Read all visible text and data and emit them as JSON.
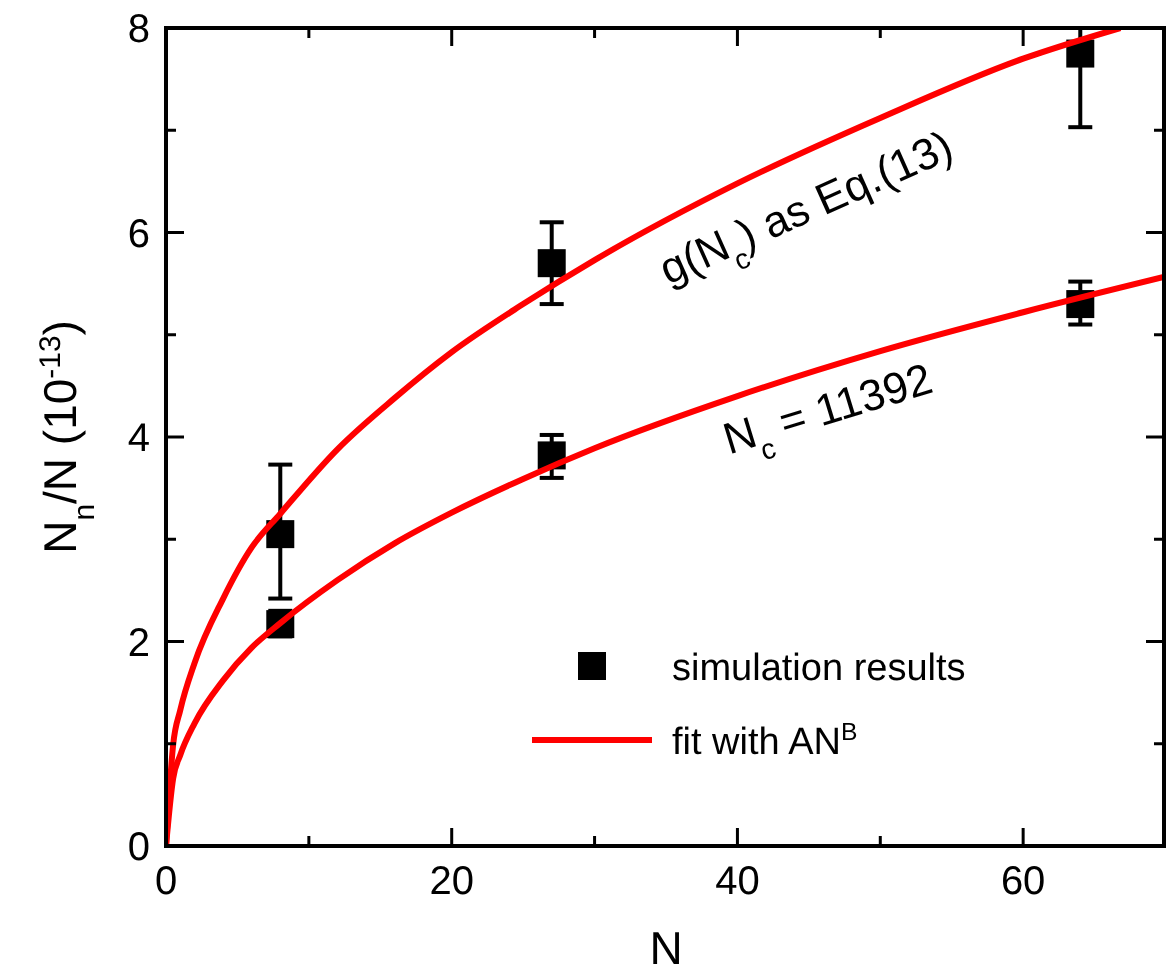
{
  "chart_data": {
    "type": "scatter",
    "xlabel": "N",
    "ylabel": "N$_{n}$/N (10$^{-13}$)",
    "xlim": [
      0,
      70
    ],
    "ylim": [
      0,
      8
    ],
    "xticks": [
      0,
      {
        "value": 10,
        "label": null
      },
      20,
      {
        "value": 30,
        "label": null
      },
      40,
      {
        "value": 50,
        "label": null
      },
      60
    ],
    "yticks": [
      0,
      {
        "value": 1,
        "label": null
      },
      2,
      {
        "value": 3,
        "label": null
      },
      4,
      {
        "value": 5,
        "label": null
      },
      6,
      {
        "value": 7,
        "label": null
      },
      8
    ],
    "grid": false,
    "legend": "bottom right",
    "series": [
      {
        "name": "simulation results",
        "marker": "square",
        "color": "#000000",
        "x": [
          8,
          8,
          27,
          27,
          64,
          64
        ],
        "values": [
          3.05,
          2.17,
          5.7,
          3.82,
          7.75,
          5.3
        ],
        "errors": [
          [
            2.42,
            3.73
          ],
          [
            2.05,
            2.3
          ],
          [
            5.3,
            6.1
          ],
          [
            3.6,
            4.02
          ],
          [
            7.03,
            8
          ],
          [
            5.1,
            5.52
          ]
        ]
      },
      {
        "name": "fit with AN$^{B}$",
        "type": "line",
        "color": "#ff0000",
        "marker": "none",
        "x": [
          0,
          0.5,
          1,
          2,
          4,
          6,
          8,
          12,
          16,
          20,
          25,
          30,
          40,
          50,
          60,
          70
        ],
        "values": [
          0,
          0.66,
          0.89,
          1.2,
          1.62,
          1.94,
          2.18,
          2.6,
          2.96,
          3.26,
          3.59,
          3.89,
          4.4,
          4.84,
          5.22,
          5.57
        ]
      },
      {
        "type": "line",
        "color": "#ff0000",
        "marker": "none",
        "x": [
          0,
          0.5,
          1,
          2,
          4,
          6,
          8,
          12,
          16,
          20,
          25,
          30,
          40,
          50,
          60,
          66.8
        ],
        "values": [
          0,
          0.99,
          1.33,
          1.79,
          2.42,
          2.92,
          3.25,
          3.88,
          4.38,
          4.83,
          5.3,
          5.73,
          6.48,
          7.12,
          7.7,
          8
        ]
      }
    ],
    "annotations": [
      "g(N$_{c}$) as Eq.(13)",
      "N$_{c}$ = 11392"
    ]
  }
}
